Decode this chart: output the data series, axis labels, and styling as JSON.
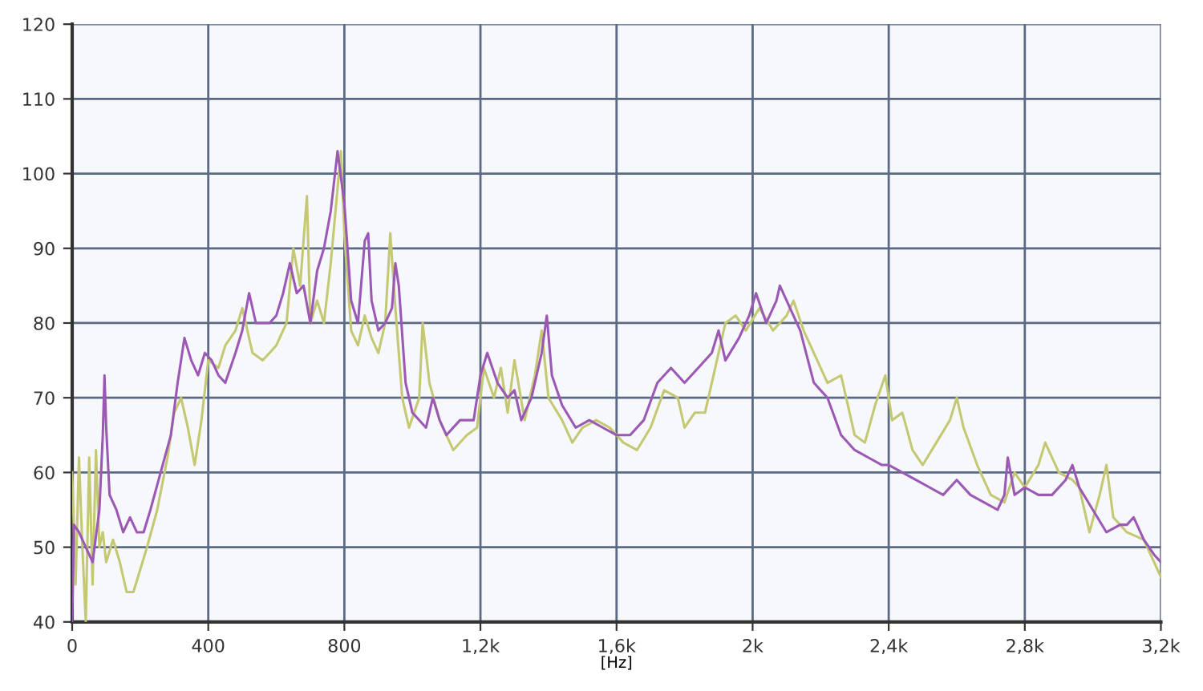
{
  "chart_data": {
    "type": "line",
    "xlabel": "[Hz]",
    "xlim": [
      0,
      3200
    ],
    "ylim": [
      40,
      120
    ],
    "xticks": [
      0,
      400,
      800,
      {
        "value": 1200,
        "label": "1,2k"
      },
      {
        "value": 1600,
        "label": "1,6k"
      },
      {
        "value": 2000,
        "label": "2k"
      },
      {
        "value": 2400,
        "label": "2,4k"
      },
      {
        "value": 2800,
        "label": "2,8k"
      },
      {
        "value": 3200,
        "label": "3,2k"
      }
    ],
    "yticks": [
      40,
      50,
      60,
      70,
      80,
      90,
      100,
      110,
      120
    ],
    "grid": true,
    "marker": "none",
    "line_style": "solid",
    "series": [
      {
        "color": "#c5c872",
        "x": [
          0,
          10,
          20,
          30,
          40,
          50,
          60,
          70,
          80,
          90,
          100,
          120,
          140,
          160,
          180,
          200,
          220,
          250,
          280,
          300,
          320,
          340,
          360,
          380,
          400,
          430,
          450,
          480,
          500,
          530,
          560,
          600,
          630,
          650,
          670,
          690,
          700,
          720,
          740,
          760,
          780,
          790,
          800,
          820,
          840,
          860,
          880,
          900,
          920,
          935,
          950,
          970,
          990,
          1020,
          1030,
          1050,
          1080,
          1100,
          1120,
          1160,
          1190,
          1210,
          1240,
          1260,
          1280,
          1300,
          1330,
          1360,
          1380,
          1400,
          1440,
          1470,
          1500,
          1540,
          1580,
          1620,
          1660,
          1700,
          1740,
          1780,
          1800,
          1830,
          1860,
          1880,
          1920,
          1950,
          1980,
          2020,
          2060,
          2100,
          2120,
          2150,
          2180,
          2220,
          2260,
          2300,
          2330,
          2360,
          2390,
          2410,
          2440,
          2470,
          2500,
          2540,
          2580,
          2600,
          2620,
          2660,
          2700,
          2740,
          2770,
          2800,
          2840,
          2860,
          2900,
          2940,
          2960,
          2990,
          3020,
          3040,
          3060,
          3100,
          3150,
          3200
        ],
        "values": [
          60,
          45,
          62,
          50,
          40,
          62,
          45,
          63,
          50,
          52,
          48,
          51,
          48,
          44,
          44,
          47,
          50,
          55,
          62,
          68,
          70,
          66,
          61,
          67,
          75,
          74,
          77,
          79,
          82,
          76,
          75,
          77,
          80,
          90,
          85,
          97,
          80,
          83,
          80,
          88,
          98,
          103,
          92,
          79,
          77,
          81,
          78,
          76,
          80,
          92,
          82,
          70,
          66,
          70,
          80,
          72,
          67,
          65,
          63,
          65,
          66,
          74,
          70,
          74,
          68,
          75,
          67,
          73,
          79,
          70,
          67,
          64,
          66,
          67,
          66,
          64,
          63,
          66,
          71,
          70,
          66,
          68,
          68,
          72,
          80,
          81,
          79,
          82,
          79,
          81,
          83,
          79,
          76,
          72,
          73,
          65,
          64,
          69,
          73,
          67,
          68,
          63,
          61,
          64,
          67,
          70,
          66,
          61,
          57,
          56,
          60,
          58,
          61,
          64,
          60,
          59,
          58,
          52,
          57,
          61,
          54,
          52,
          51,
          46
        ]
      },
      {
        "color": "#9b58b5",
        "x": [
          0,
          5,
          20,
          40,
          60,
          80,
          90,
          95,
          100,
          110,
          130,
          150,
          170,
          190,
          210,
          230,
          260,
          290,
          310,
          330,
          350,
          370,
          390,
          410,
          430,
          450,
          480,
          500,
          520,
          540,
          580,
          600,
          620,
          640,
          660,
          680,
          700,
          720,
          740,
          760,
          780,
          800,
          820,
          840,
          860,
          870,
          880,
          900,
          920,
          940,
          950,
          960,
          980,
          1000,
          1040,
          1060,
          1080,
          1100,
          1140,
          1180,
          1200,
          1220,
          1250,
          1280,
          1300,
          1320,
          1350,
          1380,
          1395,
          1410,
          1440,
          1480,
          1520,
          1560,
          1600,
          1640,
          1680,
          1720,
          1760,
          1800,
          1840,
          1880,
          1900,
          1920,
          1960,
          1990,
          2010,
          2040,
          2070,
          2080,
          2110,
          2140,
          2180,
          2220,
          2260,
          2300,
          2340,
          2380,
          2400,
          2440,
          2480,
          2520,
          2560,
          2600,
          2640,
          2680,
          2720,
          2740,
          2750,
          2770,
          2800,
          2840,
          2880,
          2920,
          2940,
          2960,
          3000,
          3040,
          3080,
          3100,
          3120,
          3150,
          3180,
          3200
        ],
        "values": [
          40,
          53,
          52,
          50,
          48,
          55,
          65,
          73,
          66,
          57,
          55,
          52,
          54,
          52,
          52,
          55,
          60,
          65,
          72,
          78,
          75,
          73,
          76,
          75,
          73,
          72,
          76,
          79,
          84,
          80,
          80,
          81,
          84,
          88,
          84,
          85,
          80,
          87,
          90,
          95,
          103,
          96,
          83,
          80,
          91,
          92,
          83,
          79,
          80,
          82,
          88,
          85,
          72,
          68,
          66,
          70,
          67,
          65,
          67,
          67,
          73,
          76,
          72,
          70,
          71,
          67,
          70,
          76,
          81,
          73,
          69,
          66,
          67,
          66,
          65,
          65,
          67,
          72,
          74,
          72,
          74,
          76,
          79,
          75,
          78,
          81,
          84,
          80,
          83,
          85,
          82,
          79,
          72,
          70,
          65,
          63,
          62,
          61,
          61,
          60,
          59,
          58,
          57,
          59,
          57,
          56,
          55,
          57,
          62,
          57,
          58,
          57,
          57,
          59,
          61,
          58,
          55,
          52,
          53,
          53,
          54,
          51,
          49,
          48
        ]
      }
    ]
  }
}
